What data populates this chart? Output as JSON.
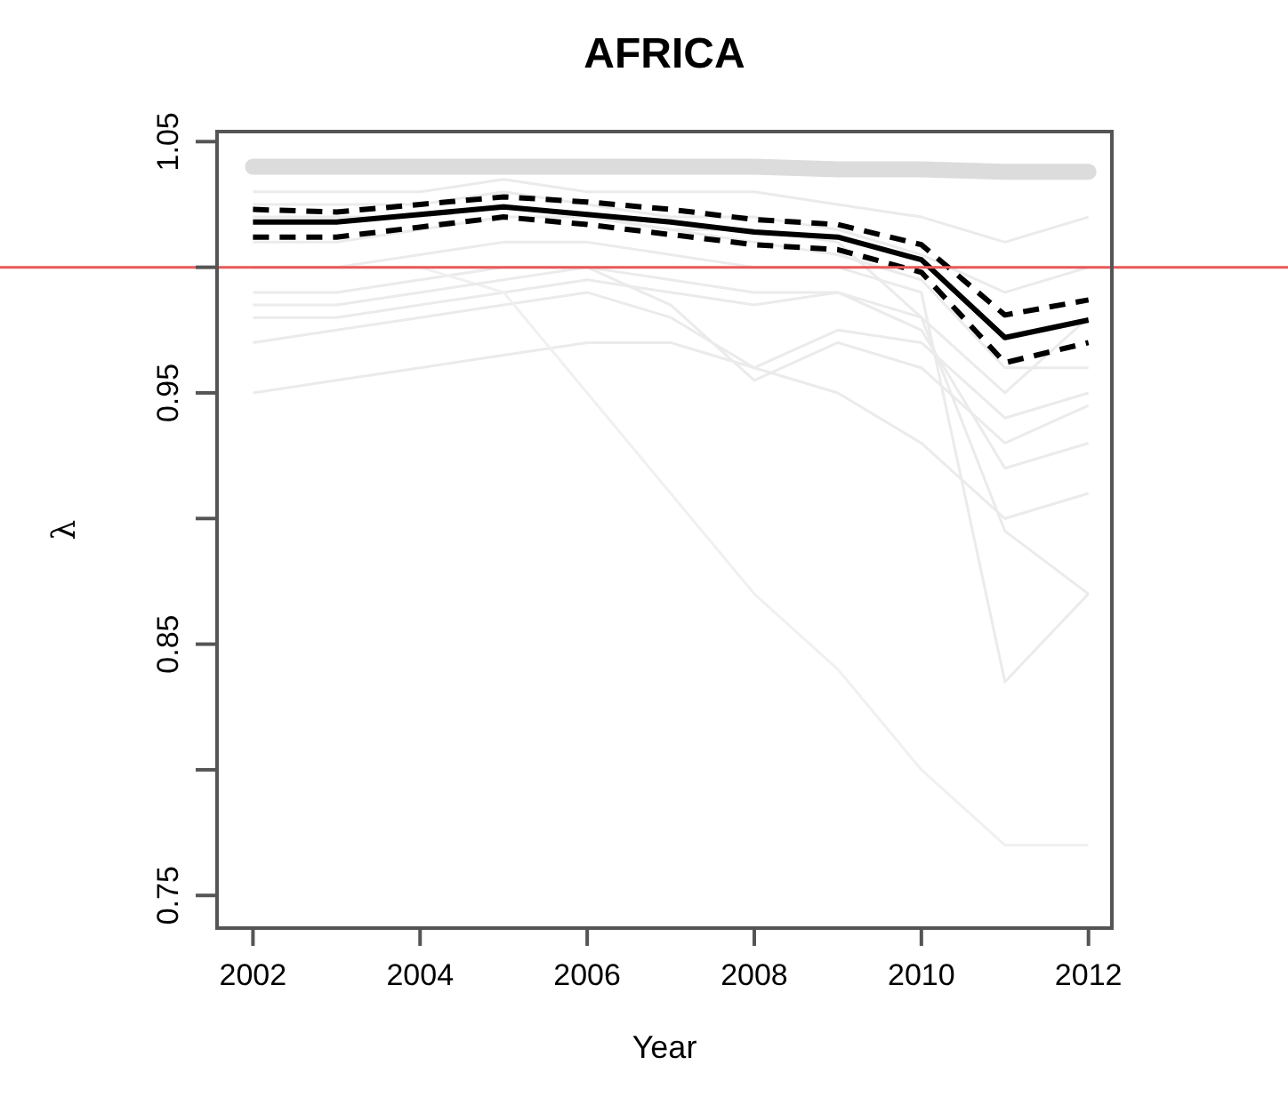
{
  "chart_data": {
    "type": "line",
    "title": "AFRICA",
    "xlabel": "Year",
    "ylabel": "λ",
    "x": [
      2002,
      2003,
      2004,
      2005,
      2006,
      2007,
      2008,
      2009,
      2010,
      2011,
      2012
    ],
    "xlim": [
      2001.57,
      2012.28
    ],
    "xticks": [
      2002,
      2004,
      2006,
      2008,
      2010,
      2012
    ],
    "ylim": [
      0.737,
      1.054
    ],
    "yticks": [
      0.75,
      {
        "value": 0.8,
        "label": null
      },
      0.85,
      {
        "value": 0.9,
        "label": null
      },
      0.95,
      {
        "value": 1.0,
        "label": null
      },
      1.05
    ],
    "marker": "none",
    "ref_lines": [
      {
        "axis": "y",
        "value": 1.0,
        "label": null,
        "color": "#e8585a"
      }
    ],
    "series": [
      {
        "color": "#dcdcdc",
        "values": [
          1.04,
          1.04,
          1.04,
          1.04,
          1.04,
          1.04,
          1.04,
          1.039,
          1.039,
          1.038,
          1.038
        ]
      },
      {
        "color": "#ebebeb",
        "values": [
          0.95,
          0.955,
          0.96,
          0.965,
          0.97,
          0.97,
          0.96,
          0.95,
          0.93,
          0.9,
          0.91
        ]
      },
      {
        "color": "#ebebeb",
        "values": [
          0.97,
          0.975,
          0.98,
          0.985,
          0.99,
          0.98,
          0.96,
          0.975,
          0.97,
          0.94,
          0.95
        ]
      },
      {
        "color": "#ebebeb",
        "values": [
          0.98,
          0.98,
          0.985,
          0.99,
          0.995,
          0.99,
          0.985,
          0.99,
          0.98,
          0.895,
          0.87
        ]
      },
      {
        "color": "#ebebeb",
        "values": [
          0.99,
          0.99,
          0.995,
          1.0,
          1.0,
          0.995,
          0.99,
          0.99,
          0.975,
          0.92,
          0.93
        ]
      },
      {
        "color": "#ebebeb",
        "values": [
          1.0,
          1.0,
          1.005,
          1.01,
          1.01,
          1.005,
          1.0,
          1.0,
          0.99,
          0.835,
          0.87
        ]
      },
      {
        "color": "#f0f0f0",
        "values": [
          1.0,
          1.0,
          1.0,
          0.99,
          0.95,
          0.91,
          0.87,
          0.84,
          0.8,
          0.77,
          0.77
        ]
      },
      {
        "color": "#ebebeb",
        "values": [
          1.03,
          1.03,
          1.03,
          1.035,
          1.03,
          1.03,
          1.03,
          1.025,
          1.02,
          1.01,
          1.02
        ]
      },
      {
        "color": "#ebebeb",
        "values": [
          1.025,
          1.025,
          1.025,
          1.03,
          1.025,
          1.02,
          1.02,
          1.015,
          1.005,
          0.99,
          1.0
        ]
      },
      {
        "color": "#ebebeb",
        "values": [
          0.985,
          0.985,
          0.99,
          0.995,
          1.0,
          0.985,
          0.955,
          0.97,
          0.96,
          0.93,
          0.945
        ]
      },
      {
        "color": "#ebebeb",
        "values": [
          1.01,
          1.01,
          1.015,
          1.02,
          1.02,
          1.015,
          1.01,
          1.005,
          0.995,
          0.96,
          0.96
        ]
      },
      {
        "color": "#ebebeb",
        "values": [
          1.02,
          1.02,
          1.02,
          1.025,
          1.02,
          1.015,
          1.015,
          1.01,
          0.98,
          0.95,
          0.98
        ]
      },
      {
        "color": "#000000",
        "line_style": "dashed",
        "values": [
          1.023,
          1.022,
          1.025,
          1.028,
          1.026,
          1.023,
          1.019,
          1.017,
          1.009,
          0.981,
          0.987
        ]
      },
      {
        "color": "#000000",
        "line_style": "dashed",
        "values": [
          1.012,
          1.012,
          1.016,
          1.02,
          1.017,
          1.013,
          1.009,
          1.007,
          0.998,
          0.962,
          0.97
        ]
      },
      {
        "color": "#000000",
        "line_style": "solid",
        "values": [
          1.018,
          1.018,
          1.021,
          1.024,
          1.021,
          1.018,
          1.014,
          1.012,
          1.003,
          0.972,
          0.979
        ]
      }
    ]
  }
}
